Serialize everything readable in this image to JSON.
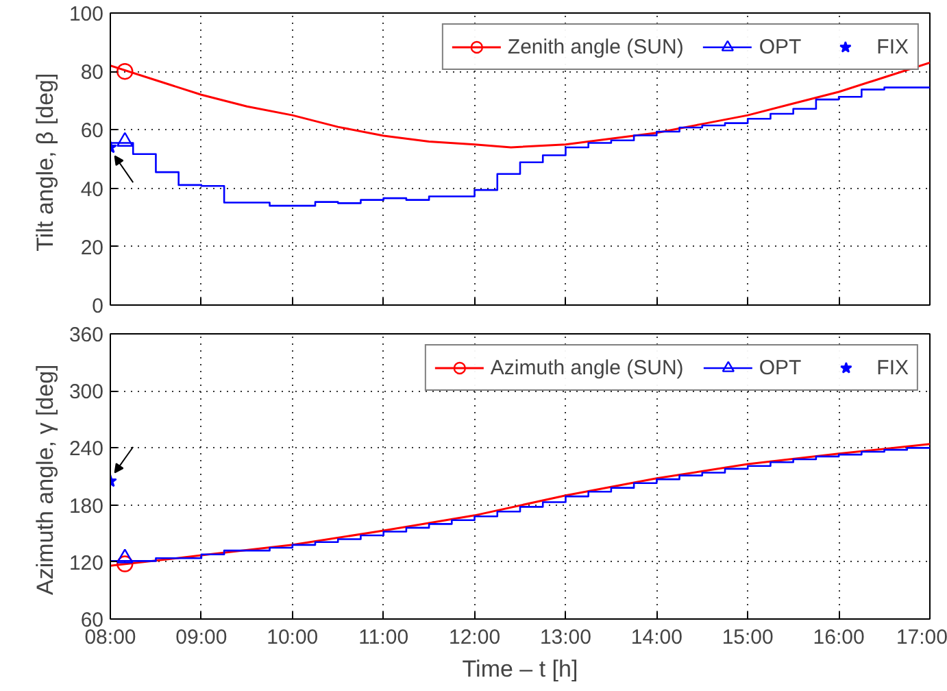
{
  "chart_data": [
    {
      "type": "line",
      "ylabel": "Tilt angle,  β [deg]",
      "xlim": [
        8,
        17
      ],
      "xticks": [
        8,
        9,
        10,
        11,
        12,
        13,
        14,
        15,
        16,
        17
      ],
      "ylim": [
        0,
        100
      ],
      "yticks": [
        0,
        20,
        40,
        60,
        80,
        100
      ],
      "tick_labels": "y",
      "grid": true,
      "legend": "top right",
      "series": [
        {
          "name": "Zenith angle (SUN)",
          "color": "#ff0000",
          "x": [
            8,
            8.5,
            9,
            9.5,
            10,
            10.5,
            11,
            11.5,
            12,
            12.4,
            13,
            13.5,
            14,
            14.5,
            15,
            15.5,
            16,
            16.5,
            17
          ],
          "values": [
            82,
            77,
            72,
            68,
            65,
            61,
            58,
            56,
            55,
            54,
            55,
            57,
            59,
            62,
            65,
            69,
            73,
            78,
            83
          ]
        },
        {
          "type": "scatter",
          "marker": "circle",
          "color": "#ff0000",
          "x": [
            8.16
          ],
          "values": [
            80
          ]
        },
        {
          "name": "OPT",
          "type": "step",
          "color": "#0000ff",
          "x": [
            8,
            8.25,
            8.5,
            8.75,
            9,
            9.25,
            9.5,
            9.75,
            10,
            10.25,
            10.5,
            10.75,
            11,
            11.25,
            11.5,
            11.75,
            12,
            12.25,
            12.5,
            12.75,
            13,
            13.25,
            13.5,
            13.75,
            14,
            14.25,
            14.5,
            14.75,
            15,
            15.25,
            15.5,
            15.75,
            16,
            16.25,
            16.5,
            16.75,
            17
          ],
          "values": [
            55.5,
            51.7,
            45.5,
            41.1,
            40.8,
            35.1,
            35.1,
            34,
            34,
            35.3,
            34.9,
            36,
            36.6,
            36,
            37.2,
            37.2,
            39.4,
            44.9,
            48.9,
            51.3,
            54,
            55.5,
            56.4,
            58.1,
            59.4,
            60.8,
            61.5,
            62.3,
            63.8,
            65.5,
            67.2,
            70.4,
            71.3,
            73.8,
            74.5,
            74.5,
            74.5
          ]
        },
        {
          "type": "scatter",
          "marker": "triangle",
          "color": "#0000ff",
          "x": [
            8.16
          ],
          "values": [
            56
          ]
        },
        {
          "name": "FIX",
          "type": "scatter",
          "marker": "star",
          "color": "#0000ff",
          "x": [
            8
          ],
          "values": [
            54
          ]
        }
      ]
    },
    {
      "type": "line",
      "xlabel": "Time – t [h]",
      "ylabel": "Azimuth angle,  γ [deg]",
      "xlim": [
        8,
        17
      ],
      "xticks": [
        {
          "value": 8,
          "label": "08:00"
        },
        {
          "value": 9,
          "label": "09:00"
        },
        {
          "value": 10,
          "label": "10:00"
        },
        {
          "value": 11,
          "label": "11:00"
        },
        {
          "value": 12,
          "label": "12:00"
        },
        {
          "value": 13,
          "label": "13:00"
        },
        {
          "value": 14,
          "label": "14:00"
        },
        {
          "value": 15,
          "label": "15:00"
        },
        {
          "value": 16,
          "label": "16:00"
        },
        {
          "value": 17,
          "label": "17:00"
        }
      ],
      "ylim": [
        60,
        360
      ],
      "yticks": [
        60,
        120,
        180,
        240,
        300,
        360
      ],
      "grid": true,
      "legend": "top right",
      "series": [
        {
          "name": "Azimuth angle (SUN)",
          "color": "#ff0000",
          "x": [
            8,
            9,
            10,
            11,
            12,
            13,
            14,
            15,
            16,
            17
          ],
          "values": [
            116,
            127,
            138,
            153,
            169,
            190,
            208,
            223,
            234,
            244
          ]
        },
        {
          "type": "scatter",
          "marker": "circle",
          "color": "#ff0000",
          "x": [
            8.16
          ],
          "values": [
            118
          ]
        },
        {
          "name": "OPT",
          "type": "step",
          "color": "#0000ff",
          "x": [
            8,
            8.25,
            8.5,
            8.75,
            9,
            9.25,
            9.5,
            9.75,
            10,
            10.25,
            10.5,
            10.75,
            11,
            11.25,
            11.5,
            11.75,
            12,
            12.25,
            12.5,
            12.75,
            13,
            13.25,
            13.5,
            13.75,
            14,
            14.25,
            14.5,
            14.75,
            15,
            15.25,
            15.5,
            15.75,
            16,
            16.25,
            16.5,
            16.75,
            17
          ],
          "values": [
            121,
            121,
            124,
            124,
            128,
            132,
            132,
            135,
            138,
            141,
            144,
            148,
            152,
            156,
            160,
            164,
            168,
            173,
            178,
            183,
            189,
            194,
            198,
            203,
            207,
            211,
            214,
            218,
            221,
            225,
            228,
            231,
            233,
            236,
            238,
            240,
            240
          ]
        },
        {
          "type": "scatter",
          "marker": "triangle",
          "color": "#0000ff",
          "x": [
            8.16
          ],
          "values": [
            124
          ]
        },
        {
          "name": "FIX",
          "type": "scatter",
          "marker": "star",
          "color": "#0000ff",
          "x": [
            8
          ],
          "values": [
            205
          ]
        }
      ]
    }
  ]
}
